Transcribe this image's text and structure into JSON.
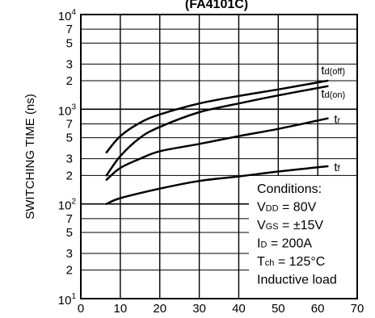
{
  "chart_data": {
    "type": "line",
    "title": "(FA4101C)",
    "ylabel": "SWITCHING TIME  (ns)",
    "xlabel": "",
    "x_scale": "linear",
    "y_scale": "log",
    "xlim": [
      0,
      70
    ],
    "ylim": [
      10,
      10000
    ],
    "x_ticks": [
      "0",
      "10",
      "20",
      "30",
      "40",
      "50",
      "60",
      "70"
    ],
    "y_ticks": [
      {
        "value": 10,
        "base": "10",
        "exp": "1"
      },
      {
        "value": 20,
        "label": "2"
      },
      {
        "value": 30,
        "label": "3"
      },
      {
        "value": 50,
        "label": "5"
      },
      {
        "value": 70,
        "label": "7"
      },
      {
        "value": 100,
        "base": "10",
        "exp": "2"
      },
      {
        "value": 200,
        "label": "2"
      },
      {
        "value": 300,
        "label": "3"
      },
      {
        "value": 500,
        "label": "5"
      },
      {
        "value": 700,
        "label": "7"
      },
      {
        "value": 1000,
        "base": "10",
        "exp": "3"
      },
      {
        "value": 2000,
        "label": "2"
      },
      {
        "value": 3000,
        "label": "3"
      },
      {
        "value": 5000,
        "label": "5"
      },
      {
        "value": 7000,
        "label": "7"
      },
      {
        "value": 10000,
        "base": "10",
        "exp": "4"
      }
    ],
    "grid": true,
    "series": [
      {
        "name": "td(off)",
        "base": "t",
        "sub": "d(off)",
        "x": [
          6.5,
          10,
          15,
          20,
          30,
          40,
          50,
          62.5
        ],
        "y": [
          350,
          520,
          720,
          880,
          1150,
          1380,
          1620,
          2000
        ]
      },
      {
        "name": "td(on)",
        "base": "t",
        "sub": "d(on)",
        "x": [
          6.5,
          10,
          15,
          20,
          30,
          40,
          50,
          62.5
        ],
        "y": [
          200,
          320,
          500,
          650,
          930,
          1150,
          1400,
          1750
        ]
      },
      {
        "name": "tr",
        "base": "t",
        "sub": "r",
        "x": [
          6.5,
          10,
          15,
          20,
          30,
          40,
          50,
          62.5
        ],
        "y": [
          180,
          240,
          300,
          360,
          430,
          520,
          620,
          800
        ]
      },
      {
        "name": "tf",
        "base": "t",
        "sub": "f",
        "x": [
          6.5,
          10,
          20,
          30,
          40,
          50,
          62.5
        ],
        "y": [
          100,
          115,
          145,
          175,
          195,
          220,
          250
        ]
      }
    ],
    "conditions": {
      "heading": "Conditions:",
      "lines": [
        {
          "pre": "V",
          "sub": "DD",
          "post": " = 80V"
        },
        {
          "pre": "V",
          "sub": "GS",
          "post": " = ±15V"
        },
        {
          "pre": "I",
          "sub": "D",
          "post": " = 200A"
        },
        {
          "pre": "T",
          "sub": "ch",
          "post": " = 125°C"
        },
        {
          "pre": "Inductive load",
          "sub": "",
          "post": ""
        }
      ]
    },
    "colors": {
      "line": "#000000",
      "grid": "#000000",
      "background": "#ffffff"
    }
  }
}
